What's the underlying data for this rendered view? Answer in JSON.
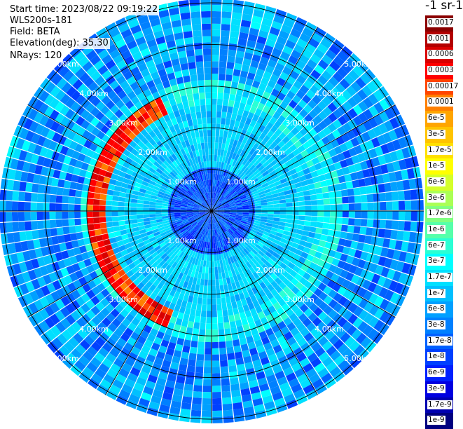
{
  "info": {
    "start_time": "Start time: 2023/08/22 09:19:22",
    "instrument": "WLS200s-181",
    "field": "Field: BETA",
    "elevation": "Elevation(deg): 35.30",
    "nrays": "NRays: 120"
  },
  "colorbar": {
    "title": "-1 sr-1",
    "labels": [
      "0.0017",
      "0.001",
      "0.0006",
      "0.0003",
      "0.00017",
      "0.0001",
      "6e-5",
      "3e-5",
      "1.7e-5",
      "1e-5",
      "6e-6",
      "3e-6",
      "1.7e-6",
      "1e-6",
      "6e-7",
      "3e-7",
      "1.7e-7",
      "1e-7",
      "6e-8",
      "3e-8",
      "1.7e-8",
      "1e-8",
      "6e-9",
      "3e-9",
      "1.7e-9",
      "1e-9"
    ],
    "colors": [
      "#8b0000",
      "#b30000",
      "#d90000",
      "#ff0000",
      "#ff4500",
      "#ff7f00",
      "#ffa500",
      "#ffc400",
      "#ffe000",
      "#ffff00",
      "#d4ff2a",
      "#aaff55",
      "#80ff80",
      "#55ffaa",
      "#2affd4",
      "#00ffff",
      "#00e0ff",
      "#00c0ff",
      "#00a0ff",
      "#0080ff",
      "#0060ff",
      "#0040ff",
      "#0020ff",
      "#0000e0",
      "#0000b0",
      "#000080"
    ]
  },
  "chart_data": {
    "type": "heatmap",
    "projection": "polar PPI",
    "field": "BETA",
    "nrays": 120,
    "range_rings_km": [
      1,
      2,
      3,
      4,
      5
    ],
    "ring_labels": [
      "1.00km",
      "2.00km",
      "3.00km",
      "4.00km",
      "5.00km"
    ],
    "features": [
      {
        "description": "high backscatter arc",
        "range_km": [
          2.6,
          3.0
        ],
        "azimuth_deg": [
          200,
          335
        ],
        "value_range": [
          0.0001,
          0.0006
        ]
      }
    ],
    "background_value_range": [
      1e-08,
      1e-07
    ]
  }
}
